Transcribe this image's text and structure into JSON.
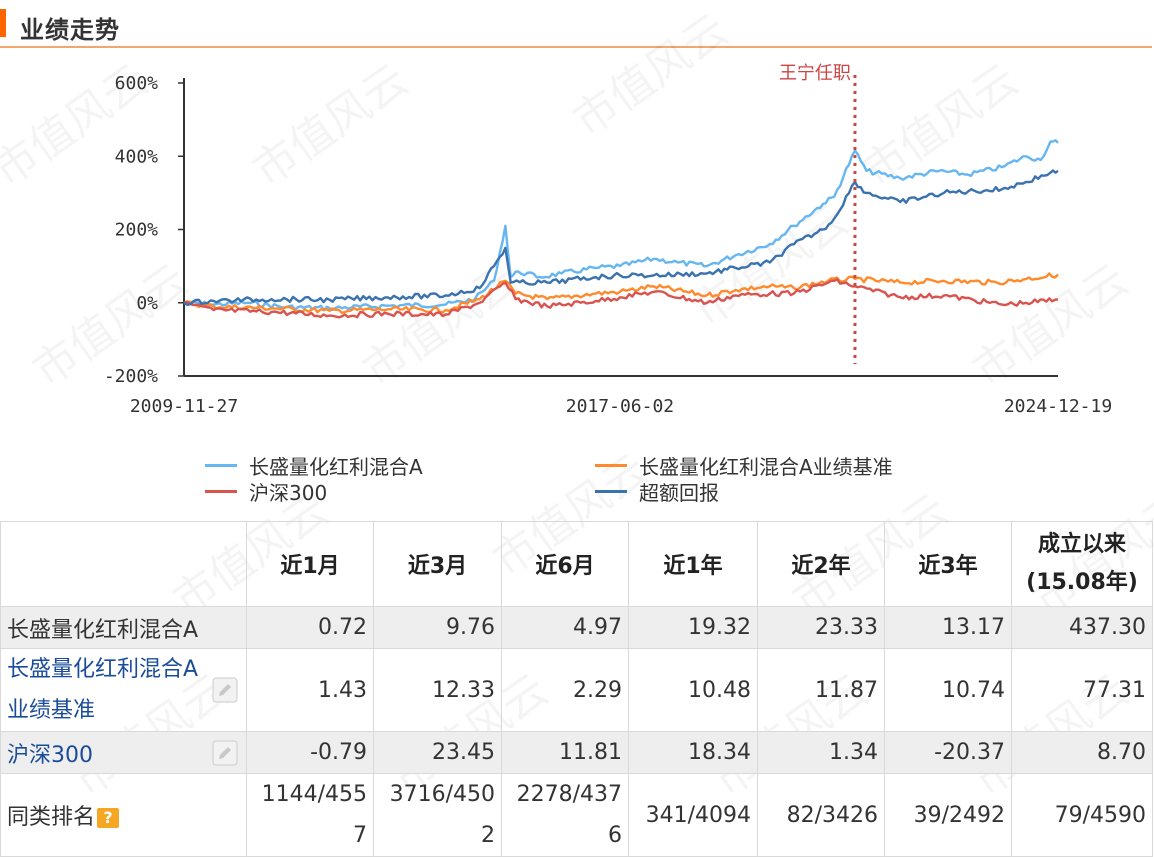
{
  "section": {
    "title": "业绩走势"
  },
  "watermark": "市值风云",
  "manager_note": "王宁任职",
  "colors": {
    "fund": "#66b6f2",
    "benchmark": "#ff8a2b",
    "hs300": "#d9534f",
    "excess": "#3a72b0",
    "marker": "#cc4444",
    "accent": "#ff6600"
  },
  "chart_data": {
    "type": "line",
    "title": "",
    "xlabel": "",
    "ylabel": "",
    "ylim": [
      -200,
      600
    ],
    "y_ticks": [
      "600%",
      "400%",
      "200%",
      "0%",
      "-200%"
    ],
    "y_tick_values": [
      600,
      400,
      200,
      0,
      -200
    ],
    "x_ticks": [
      "2009-11-27",
      "2017-06-02",
      "2024-12-19"
    ],
    "xlim": [
      "2009-11-27",
      "2024-12-19"
    ],
    "marker_date": "2021-06-20",
    "grid": false,
    "legend_position": "bottom",
    "series": [
      {
        "name": "长盛量化红利混合A",
        "color": "#66b6f2",
        "points": [
          [
            "2009-11-27",
            0
          ],
          [
            "2010-06-01",
            -5
          ],
          [
            "2011-01-01",
            0
          ],
          [
            "2011-09-01",
            -12
          ],
          [
            "2012-06-01",
            -15
          ],
          [
            "2013-06-01",
            -8
          ],
          [
            "2014-06-01",
            -5
          ],
          [
            "2014-12-01",
            10
          ],
          [
            "2015-04-01",
            60
          ],
          [
            "2015-06-12",
            210
          ],
          [
            "2015-07-15",
            70
          ],
          [
            "2015-09-01",
            85
          ],
          [
            "2016-01-15",
            70
          ],
          [
            "2016-06-01",
            80
          ],
          [
            "2017-01-01",
            95
          ],
          [
            "2017-06-02",
            100
          ],
          [
            "2018-01-01",
            120
          ],
          [
            "2018-06-01",
            110
          ],
          [
            "2018-12-01",
            100
          ],
          [
            "2019-06-01",
            130
          ],
          [
            "2020-01-01",
            160
          ],
          [
            "2020-06-01",
            210
          ],
          [
            "2020-12-01",
            270
          ],
          [
            "2021-02-10",
            290
          ],
          [
            "2021-06-20",
            415
          ],
          [
            "2021-09-01",
            360
          ],
          [
            "2022-04-01",
            340
          ],
          [
            "2022-12-01",
            360
          ],
          [
            "2023-06-01",
            350
          ],
          [
            "2024-01-01",
            370
          ],
          [
            "2024-06-01",
            400
          ],
          [
            "2024-09-01",
            390
          ],
          [
            "2024-11-01",
            440
          ],
          [
            "2024-12-19",
            437
          ]
        ]
      },
      {
        "name": "长盛量化红利混合A业绩基准",
        "color": "#ff8a2b",
        "points": [
          [
            "2009-11-27",
            0
          ],
          [
            "2010-06-01",
            -10
          ],
          [
            "2011-06-01",
            -15
          ],
          [
            "2012-06-01",
            -22
          ],
          [
            "2013-06-01",
            -18
          ],
          [
            "2014-06-01",
            -20
          ],
          [
            "2015-01-01",
            10
          ],
          [
            "2015-06-12",
            60
          ],
          [
            "2015-08-15",
            25
          ],
          [
            "2016-03-01",
            10
          ],
          [
            "2017-01-01",
            25
          ],
          [
            "2017-06-02",
            30
          ],
          [
            "2018-01-01",
            45
          ],
          [
            "2018-12-01",
            20
          ],
          [
            "2019-06-01",
            35
          ],
          [
            "2020-01-01",
            45
          ],
          [
            "2020-06-01",
            40
          ],
          [
            "2021-01-01",
            60
          ],
          [
            "2021-06-20",
            65
          ],
          [
            "2022-04-01",
            55
          ],
          [
            "2023-01-01",
            60
          ],
          [
            "2023-12-01",
            55
          ],
          [
            "2024-06-01",
            65
          ],
          [
            "2024-12-19",
            77
          ]
        ]
      },
      {
        "name": "沪深300",
        "color": "#d9534f",
        "points": [
          [
            "2009-11-27",
            0
          ],
          [
            "2010-06-01",
            -20
          ],
          [
            "2011-06-01",
            -25
          ],
          [
            "2012-06-01",
            -35
          ],
          [
            "2013-06-01",
            -30
          ],
          [
            "2014-06-01",
            -32
          ],
          [
            "2015-01-01",
            0
          ],
          [
            "2015-06-12",
            55
          ],
          [
            "2015-08-15",
            10
          ],
          [
            "2016-03-01",
            -10
          ],
          [
            "2017-01-01",
            5
          ],
          [
            "2017-06-02",
            15
          ],
          [
            "2018-01-01",
            30
          ],
          [
            "2018-12-01",
            0
          ],
          [
            "2019-06-01",
            20
          ],
          [
            "2020-01-01",
            25
          ],
          [
            "2020-06-01",
            25
          ],
          [
            "2021-02-10",
            60
          ],
          [
            "2021-06-20",
            45
          ],
          [
            "2022-04-01",
            15
          ],
          [
            "2023-01-01",
            20
          ],
          [
            "2024-01-01",
            -5
          ],
          [
            "2024-06-01",
            0
          ],
          [
            "2024-12-19",
            9
          ]
        ]
      },
      {
        "name": "超额回报",
        "color": "#3a72b0",
        "points": [
          [
            "2009-11-27",
            0
          ],
          [
            "2010-06-01",
            5
          ],
          [
            "2011-06-01",
            10
          ],
          [
            "2012-06-01",
            8
          ],
          [
            "2013-06-01",
            15
          ],
          [
            "2014-06-01",
            20
          ],
          [
            "2015-01-01",
            40
          ],
          [
            "2015-06-12",
            150
          ],
          [
            "2015-07-15",
            55
          ],
          [
            "2016-03-01",
            55
          ],
          [
            "2017-01-01",
            70
          ],
          [
            "2017-06-02",
            75
          ],
          [
            "2018-01-01",
            75
          ],
          [
            "2018-12-01",
            80
          ],
          [
            "2019-06-01",
            95
          ],
          [
            "2020-01-01",
            110
          ],
          [
            "2020-06-01",
            160
          ],
          [
            "2020-12-01",
            200
          ],
          [
            "2021-02-10",
            230
          ],
          [
            "2021-06-20",
            330
          ],
          [
            "2021-09-01",
            300
          ],
          [
            "2022-04-01",
            275
          ],
          [
            "2023-01-01",
            300
          ],
          [
            "2024-01-01",
            310
          ],
          [
            "2024-06-01",
            330
          ],
          [
            "2024-11-01",
            355
          ],
          [
            "2024-12-19",
            360
          ]
        ]
      }
    ]
  },
  "table": {
    "headers": [
      "",
      "近1月",
      "近3月",
      "近6月",
      "近1年",
      "近2年",
      "近3年",
      "成立以来\n(15.08年)"
    ],
    "rows": [
      {
        "name": "长盛量化红利混合A",
        "cells": [
          "0.72",
          "9.76",
          "4.97",
          "19.32",
          "23.33",
          "13.17",
          "437.30"
        ]
      },
      {
        "name": "长盛量化红利混合A业绩基准",
        "cells": [
          "1.43",
          "12.33",
          "2.29",
          "10.48",
          "11.87",
          "10.74",
          "77.31"
        ]
      },
      {
        "name": "沪深300",
        "cells": [
          "-0.79",
          "23.45",
          "11.81",
          "18.34",
          "1.34",
          "-20.37",
          "8.70"
        ]
      },
      {
        "name": "同类排名",
        "cells": [
          "1144/4557",
          "3716/4502",
          "2278/4376",
          "341/4094",
          "82/3426",
          "39/2492",
          "79/4590"
        ]
      }
    ],
    "help_icon": "?"
  }
}
